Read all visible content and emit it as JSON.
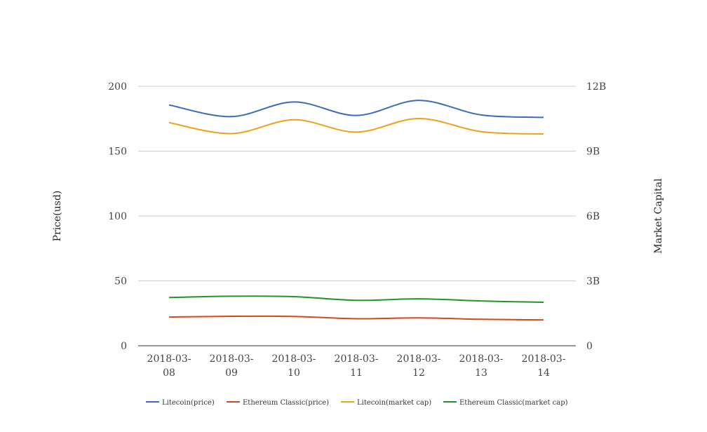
{
  "chart_data": {
    "type": "line",
    "title": "",
    "categories": [
      "2018-03-08",
      "2018-03-09",
      "2018-03-10",
      "2018-03-11",
      "2018-03-12",
      "2018-03-13",
      "2018-03-14"
    ],
    "category_lines": [
      [
        "2018-03-",
        "08"
      ],
      [
        "2018-03-",
        "09"
      ],
      [
        "2018-03-",
        "10"
      ],
      [
        "2018-03-",
        "11"
      ],
      [
        "2018-03-",
        "12"
      ],
      [
        "2018-03-",
        "13"
      ],
      [
        "2018-03-",
        "14"
      ]
    ],
    "y_left": {
      "label": "Price(usd)",
      "range": [
        0,
        200
      ],
      "ticks": [
        0,
        50,
        100,
        150,
        200
      ]
    },
    "y_right": {
      "label": "Market Capital",
      "range": [
        0,
        12000000000
      ],
      "ticks": [
        "0",
        "3B",
        "6B",
        "9B",
        "12B"
      ]
    },
    "grid": true,
    "legend_position": "bottom",
    "series": [
      {
        "name": "Litecoin(price)",
        "axis": "left",
        "color": "#3a6bbf",
        "values": [
          185.6,
          176.6,
          187.9,
          177.5,
          189.1,
          177.9,
          176.0
        ]
      },
      {
        "name": "Ethereum Classic(price)",
        "axis": "left",
        "color": "#cc4a1c",
        "values": [
          22.1,
          22.7,
          22.6,
          20.8,
          21.5,
          20.4,
          19.9
        ]
      },
      {
        "name": "Litecoin(market cap)",
        "axis": "right",
        "color": "#f0a01a",
        "values": [
          10320000000,
          9810000000,
          10450000000,
          9880000000,
          10510000000,
          9900000000,
          9790000000
        ]
      },
      {
        "name": "Ethereum Classic(market cap)",
        "axis": "right",
        "color": "#1e9620",
        "values": [
          2230000000,
          2290000000,
          2270000000,
          2100000000,
          2170000000,
          2070000000,
          2010000000
        ]
      }
    ]
  }
}
